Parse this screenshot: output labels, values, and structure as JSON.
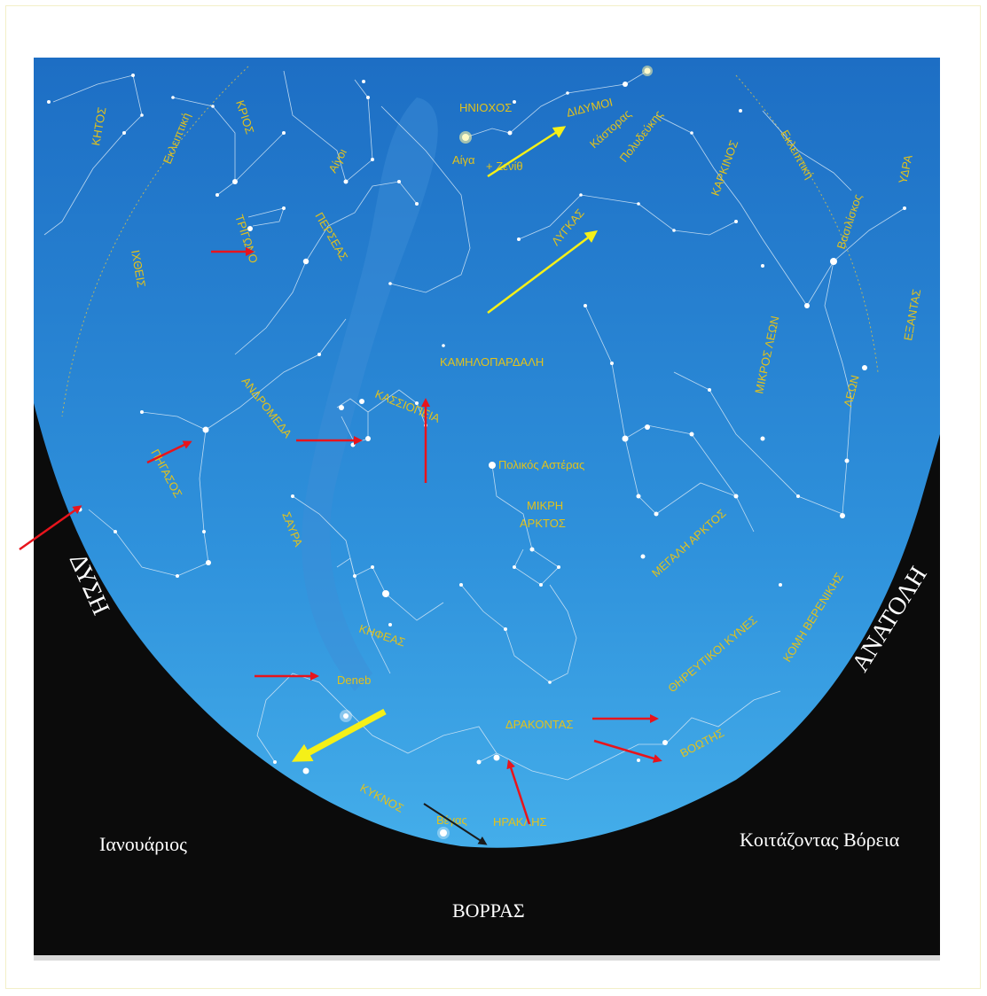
{
  "map": {
    "month_label": "Ιανουάριος",
    "view_label": "Κοιτάζοντας Βόρεια",
    "north_label": "ΒΟΡΡΑΣ",
    "west_label": "ΔΥΣΗ",
    "east_label": "ΑΝΑΤΟΛΗ",
    "constellations": {
      "ketos": "ΚΗΤΟΣ",
      "ekleiptiki_left": "Εκλειπτική",
      "krios": "ΚΡΙΟΣ",
      "aigoi": "Αίγοι",
      "iniochos": "ΗΝΙΟΧΟΣ",
      "aiga": "Αίγα",
      "zenith": "+ Ζενίθ",
      "didymoi": "ΔΙΔΥΜΟΙ",
      "kastoras": "Κάστορας",
      "polydefkis": "Πολυδεύκης",
      "karkinos": "ΚΑΡΚΙΝΟΣ",
      "ekleiptiki_right": "Εκλειπτική",
      "vasiliskos": "Βασιλίσκος",
      "ydra": "ΥΔΡΑ",
      "trigono": "ΤΡΙΓΩΝΟ",
      "perseas": "ΠΕΡΣΕΑΣ",
      "lygkas": "ΛΥΓΚΑΣ",
      "ichtheis": "ΙΧΘΕΙΣ",
      "exantas": "ΕΞΑΝΤΑΣ",
      "kamilopardali": "ΚΑΜΗΛΟΠΑΡΔΑΛΗ",
      "mikros_leon": "ΜΙΚΡΟΣ ΛΕΩΝ",
      "leon": "ΛΕΩΝ",
      "andromeda": "ΑΝΔΡΟΜΕΔΑ",
      "kassiopeia": "ΚΑΣΣΙΟΠΕΙΑ",
      "polikos_asteras": "Πολικός Αστέρας",
      "pigasos": "ΠΗΓΑΣΟΣ",
      "mikri_arktos_1": "ΜΙΚΡΗ",
      "mikri_arktos_2": "ΑΡΚΤΟΣ",
      "megali_arktos": "ΜΕΓΑΛΗ ΑΡΚΤΟΣ",
      "savra": "ΣΑΥΡΑ",
      "komi_verenikis": "ΚΟΜΗ ΒΕΡΕΝΙΚΗΣ",
      "thireftikoi_kynes": "ΘΗΡΕΥΤΙΚΟΙ ΚΥΝΕΣ",
      "kifeas": "ΚΗΦΕΑΣ",
      "deneb": "Deneb",
      "drakontas": "ΔΡΑΚΟΝΤΑΣ",
      "voitis": "ΒΟΩΤΗΣ",
      "kyknos": "ΚΥΚΝΟΣ",
      "vegas": "Βέγας",
      "iraklis": "ΗΡΑΚΛΗΣ"
    },
    "colors": {
      "sky_top": "#1e72c8",
      "sky_bottom": "#48b4ee",
      "horizon": "#0a0a0a",
      "label": "#e2c21c",
      "arrow_red": "#e8141c",
      "arrow_yellow": "#f5f018",
      "arrow_dark": "#1a1a1a"
    }
  }
}
